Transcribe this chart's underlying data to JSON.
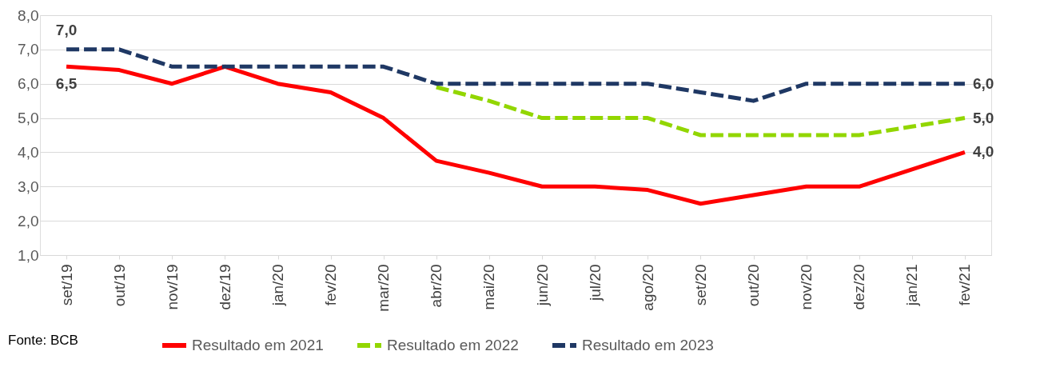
{
  "chart_data": {
    "type": "line",
    "categories": [
      "set/19",
      "out/19",
      "nov/19",
      "dez/19",
      "jan/20",
      "fev/20",
      "mar/20",
      "abr/20",
      "mai/20",
      "jun/20",
      "jul/20",
      "ago/20",
      "set/20",
      "out/20",
      "nov/20",
      "dez/20",
      "jan/21",
      "fev/21"
    ],
    "series": [
      {
        "name": "Resultado em 2021",
        "color": "#ff0000",
        "line_style": "solid",
        "values": [
          6.5,
          6.4,
          6.0,
          6.5,
          6.0,
          5.75,
          5.0,
          3.75,
          3.4,
          3.0,
          3.0,
          2.9,
          2.5,
          2.75,
          3.0,
          3.0,
          3.5,
          4.0
        ],
        "value_labels": [
          "6,5",
          null,
          null,
          null,
          null,
          null,
          null,
          null,
          null,
          null,
          null,
          null,
          null,
          null,
          null,
          null,
          null,
          "4,0"
        ]
      },
      {
        "name": "Resultado em 2022",
        "color": "#92d600",
        "line_style": "dashed",
        "values": [
          null,
          null,
          null,
          null,
          null,
          null,
          null,
          5.9,
          5.5,
          5.0,
          5.0,
          5.0,
          4.5,
          4.5,
          4.5,
          4.5,
          4.75,
          5.0
        ],
        "value_labels": [
          null,
          null,
          null,
          null,
          null,
          null,
          null,
          null,
          null,
          null,
          null,
          null,
          null,
          null,
          null,
          null,
          null,
          "5,0"
        ]
      },
      {
        "name": "Resultado em 2023",
        "color": "#1f3864",
        "line_style": "dashed",
        "values": [
          7.0,
          7.0,
          6.5,
          6.5,
          6.5,
          6.5,
          6.5,
          6.0,
          6.0,
          6.0,
          6.0,
          6.0,
          5.75,
          5.5,
          6.0,
          6.0,
          6.0,
          6.0
        ],
        "value_labels": [
          "7,0",
          null,
          null,
          null,
          null,
          null,
          null,
          null,
          null,
          null,
          null,
          null,
          null,
          null,
          null,
          null,
          null,
          "6,0"
        ]
      }
    ],
    "ylim": [
      1.0,
      8.0
    ],
    "yticks": [
      {
        "value": 1,
        "label": "1,0"
      },
      {
        "value": 2,
        "label": "2,0"
      },
      {
        "value": 3,
        "label": "3,0"
      },
      {
        "value": 4,
        "label": "4,0"
      },
      {
        "value": 5,
        "label": "5,0"
      },
      {
        "value": 6,
        "label": "6,0"
      },
      {
        "value": 7,
        "label": "7,0"
      },
      {
        "value": 8,
        "label": "8,0"
      }
    ],
    "grid": "y",
    "legend": "bottom",
    "annotations": [
      "Fonte: BCB"
    ]
  }
}
